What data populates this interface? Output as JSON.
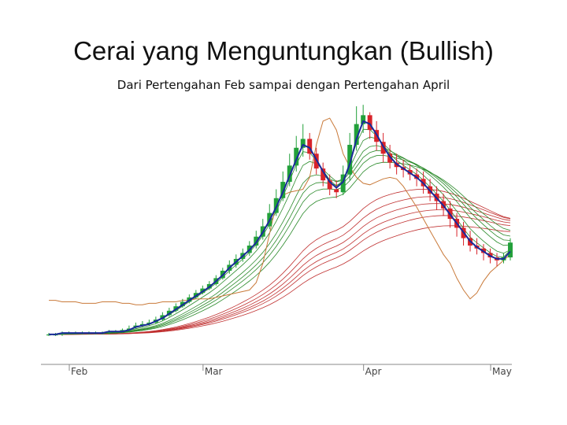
{
  "slide": {
    "title": "Cerai yang Menguntungkan (Bullish)",
    "subtitle": "Dari Pertengahan Feb sampai dengan Pertengahan April"
  },
  "chart_data": {
    "type": "candlestick",
    "title": "",
    "xlabel": "",
    "ylabel": "",
    "x_ticks": [
      {
        "label": "Feb",
        "index": 0
      },
      {
        "label": "Mar",
        "index": 20
      },
      {
        "label": "Apr",
        "index": 44
      },
      {
        "label": "May",
        "index": 63
      }
    ],
    "colors": {
      "up": "#22a03a",
      "down": "#d8232a",
      "short_ema": "#1a2a9a",
      "short_ribbon": "#2a8a2a",
      "long_ribbon": "#c03030",
      "overlay_line": "#c97a3a"
    },
    "series": [
      {
        "kind": "ohlc",
        "open": [
          100,
          100,
          100,
          101,
          101,
          101,
          101,
          101,
          101,
          101,
          102,
          102,
          103,
          105,
          106,
          107,
          108,
          110,
          113,
          116,
          119,
          122,
          125,
          128,
          131,
          134,
          138,
          143,
          147,
          151,
          155,
          160,
          166,
          173,
          182,
          192,
          203,
          214,
          226,
          232,
          222,
          212,
          204,
          198,
          196,
          208,
          228,
          242,
          248,
          238,
          230,
          222,
          216,
          213,
          211,
          208,
          205,
          200,
          195,
          190,
          185,
          178,
          172,
          165,
          160,
          158,
          155,
          152,
          150,
          152
        ],
        "close": [
          100,
          100,
          101,
          101,
          101,
          101,
          101,
          101,
          101,
          102,
          102,
          103,
          104,
          106,
          107,
          108,
          110,
          113,
          116,
          119,
          122,
          125,
          128,
          131,
          134,
          138,
          143,
          147,
          151,
          155,
          160,
          166,
          173,
          182,
          192,
          203,
          214,
          226,
          232,
          222,
          212,
          204,
          198,
          196,
          208,
          228,
          242,
          248,
          238,
          230,
          222,
          216,
          213,
          211,
          208,
          205,
          200,
          195,
          190,
          185,
          178,
          172,
          165,
          160,
          158,
          155,
          152,
          150,
          152,
          162
        ],
        "high": [
          101,
          101,
          102,
          102,
          102,
          102,
          102,
          102,
          102,
          103,
          103,
          104,
          106,
          108,
          109,
          110,
          112,
          115,
          118,
          121,
          124,
          127,
          130,
          133,
          136,
          140,
          145,
          150,
          154,
          158,
          163,
          170,
          178,
          188,
          198,
          210,
          222,
          234,
          242,
          236,
          226,
          216,
          208,
          204,
          214,
          236,
          254,
          255,
          250,
          244,
          236,
          228,
          222,
          218,
          215,
          212,
          210,
          205,
          200,
          195,
          190,
          182,
          176,
          170,
          165,
          161,
          158,
          155,
          155,
          165
        ],
        "low": [
          99,
          99,
          99,
          100,
          100,
          100,
          100,
          100,
          100,
          100,
          101,
          101,
          102,
          104,
          105,
          106,
          107,
          109,
          112,
          115,
          118,
          121,
          124,
          127,
          130,
          133,
          137,
          141,
          145,
          149,
          153,
          158,
          164,
          171,
          180,
          190,
          200,
          210,
          220,
          218,
          208,
          200,
          194,
          192,
          194,
          204,
          224,
          236,
          232,
          224,
          216,
          212,
          208,
          206,
          204,
          200,
          195,
          190,
          184,
          180,
          172,
          166,
          160,
          156,
          154,
          150,
          148,
          146,
          148,
          150
        ]
      },
      {
        "kind": "ema_short",
        "name": "",
        "values": [
          100,
          100,
          101,
          101,
          101,
          101,
          101,
          101,
          101,
          102,
          102,
          102,
          103,
          105,
          106,
          107,
          109,
          111,
          114,
          117,
          120,
          123,
          126,
          129,
          132,
          136,
          140,
          145,
          149,
          153,
          157,
          162,
          169,
          177,
          186,
          196,
          207,
          218,
          228,
          226,
          218,
          210,
          203,
          199,
          203,
          215,
          232,
          244,
          242,
          235,
          227,
          220,
          215,
          212,
          209,
          206,
          202,
          197,
          192,
          187,
          181,
          175,
          169,
          163,
          159,
          156,
          153,
          151,
          151,
          156
        ]
      },
      {
        "kind": "overlay",
        "name": "",
        "values": [
          123,
          123,
          122,
          122,
          122,
          121,
          121,
          121,
          122,
          122,
          122,
          121,
          121,
          120,
          120,
          121,
          121,
          122,
          122,
          122,
          123,
          123,
          124,
          124,
          124,
          125,
          126,
          127,
          128,
          129,
          130,
          135,
          148,
          168,
          188,
          194,
          196,
          197,
          198,
          206,
          228,
          244,
          246,
          238,
          222,
          213,
          206,
          202,
          201,
          203,
          205,
          206,
          205,
          200,
          193,
          186,
          178,
          170,
          162,
          154,
          148,
          138,
          130,
          124,
          128,
          136,
          142,
          146,
          150,
          154
        ]
      }
    ],
    "ylim": [
      92,
      262
    ]
  }
}
